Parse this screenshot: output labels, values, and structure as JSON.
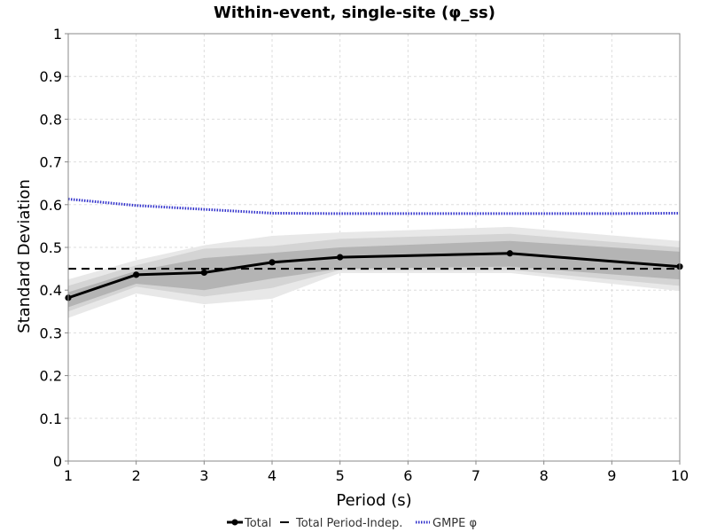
{
  "chart_data": {
    "type": "line",
    "title": "Within-event, single-site (φ_ss)",
    "xlabel": "Period (s)",
    "ylabel": "Standard Deviation",
    "xlim": [
      1,
      10
    ],
    "ylim": [
      0,
      1
    ],
    "x_ticks": [
      "1",
      "2",
      "3",
      "4",
      "5",
      "6",
      "7",
      "8",
      "9",
      "10"
    ],
    "y_ticks": [
      "0",
      "0.1",
      "0.2",
      "0.3",
      "0.4",
      "0.5",
      "0.6",
      "0.7",
      "0.8",
      "0.9",
      "1"
    ],
    "grid": true,
    "legend_position": "bottom",
    "x": [
      1,
      2,
      3,
      4,
      5,
      7.5,
      10
    ],
    "series": [
      {
        "name": "Total",
        "style": "solid-with-markers",
        "color": "#000000",
        "values": [
          0.382,
          0.436,
          0.441,
          0.465,
          0.477,
          0.486,
          0.455
        ]
      },
      {
        "name": "Total Period-Indep.",
        "style": "dashed",
        "color": "#000000",
        "x": [
          1,
          10
        ],
        "values": [
          0.45,
          0.45
        ]
      },
      {
        "name": "GMPE φ",
        "style": "dotted",
        "color": "#3333cc",
        "x": [
          1,
          2,
          3,
          4,
          5,
          6,
          7,
          7.5,
          8,
          9,
          10
        ],
        "values": [
          0.613,
          0.598,
          0.589,
          0.58,
          0.579,
          0.579,
          0.579,
          0.579,
          0.579,
          0.579,
          0.58
        ]
      }
    ],
    "bands": [
      {
        "kind": "outer",
        "color": "#e8e8e8",
        "lower": [
          0.335,
          0.392,
          0.367,
          0.38,
          0.44,
          0.44,
          0.398
        ],
        "upper": [
          0.425,
          0.47,
          0.505,
          0.527,
          0.535,
          0.548,
          0.515
        ]
      },
      {
        "kind": "middle",
        "color": "#d4d4d4",
        "lower": [
          0.35,
          0.408,
          0.385,
          0.405,
          0.447,
          0.447,
          0.41
        ],
        "upper": [
          0.41,
          0.458,
          0.497,
          0.503,
          0.52,
          0.532,
          0.5
        ]
      },
      {
        "kind": "inner",
        "color": "#b4b4b4",
        "lower": [
          0.36,
          0.415,
          0.4,
          0.427,
          0.45,
          0.455,
          0.425
        ],
        "upper": [
          0.395,
          0.445,
          0.475,
          0.487,
          0.5,
          0.515,
          0.49
        ]
      }
    ]
  }
}
